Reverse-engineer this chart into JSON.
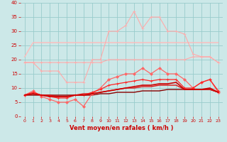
{
  "xlabel": "Vent moyen/en rafales ( km/h )",
  "xlim": [
    -0.5,
    23.5
  ],
  "ylim": [
    0,
    40
  ],
  "yticks": [
    0,
    5,
    10,
    15,
    20,
    25,
    30,
    35,
    40
  ],
  "xticks": [
    0,
    1,
    2,
    3,
    4,
    5,
    6,
    7,
    8,
    9,
    10,
    11,
    12,
    13,
    14,
    15,
    16,
    17,
    18,
    19,
    20,
    21,
    22,
    23
  ],
  "bg_color": "#cce8e8",
  "grid_color": "#99cccc",
  "xlabel_color": "#cc0000",
  "tick_color": "#cc0000",
  "series": [
    {
      "y": [
        21,
        26,
        26,
        26,
        26,
        26,
        26,
        26,
        26,
        26,
        26,
        26,
        26,
        26,
        26,
        26,
        26,
        26,
        26,
        26,
        26,
        26,
        26,
        26
      ],
      "color": "#ffbbbb",
      "marker": null,
      "lw": 1.0,
      "zorder": 2
    },
    {
      "y": [
        19,
        19,
        19,
        19,
        19,
        19,
        19,
        19,
        19,
        19,
        20,
        20,
        20,
        20,
        20,
        20,
        20,
        20,
        20,
        20,
        21,
        21,
        21,
        19
      ],
      "color": "#ffaaaa",
      "marker": "+",
      "ms": 3,
      "lw": 0.8,
      "zorder": 3
    },
    {
      "y": [
        19,
        19,
        16,
        16,
        16,
        12,
        12,
        12,
        20,
        20,
        30,
        30,
        32,
        37,
        31,
        35,
        35,
        30,
        30,
        29,
        22,
        21,
        21,
        19
      ],
      "color": "#ffaaaa",
      "marker": "+",
      "ms": 3,
      "lw": 0.8,
      "zorder": 3
    },
    {
      "y": [
        7.5,
        9,
        7,
        6,
        5,
        5,
        6,
        3.5,
        8,
        10,
        13,
        14,
        15,
        15,
        17,
        15,
        17,
        15,
        15,
        13,
        10,
        12,
        13,
        8.5
      ],
      "color": "#ff6666",
      "marker": "D",
      "ms": 2.0,
      "lw": 0.9,
      "zorder": 4
    },
    {
      "y": [
        7.5,
        8.5,
        7.5,
        7,
        6.5,
        6.5,
        7.5,
        7.5,
        8.5,
        9.5,
        11,
        11.5,
        12,
        12.5,
        13,
        12.5,
        13,
        13,
        13,
        10,
        10,
        12,
        13,
        9
      ],
      "color": "#ff2222",
      "marker": "+",
      "ms": 3,
      "lw": 0.9,
      "zorder": 5
    },
    {
      "y": [
        7.5,
        8,
        7.5,
        7,
        7,
        7,
        7.5,
        7.5,
        8,
        8.5,
        9,
        9.5,
        10,
        10.5,
        11,
        11,
        11.5,
        11.5,
        12,
        9.5,
        9.5,
        9.5,
        10,
        8.5
      ],
      "color": "#cc0000",
      "marker": null,
      "lw": 1.2,
      "zorder": 5
    },
    {
      "y": [
        7.5,
        8,
        7.5,
        7.5,
        7,
        7,
        7.5,
        8,
        8,
        8.5,
        9,
        9.5,
        10,
        10,
        10.5,
        10.5,
        11,
        11,
        11,
        9.5,
        9.5,
        9.5,
        9.5,
        8.5
      ],
      "color": "#dd1111",
      "marker": null,
      "lw": 1.0,
      "zorder": 4
    },
    {
      "y": [
        7.5,
        7.5,
        7.5,
        7.5,
        7.5,
        7.5,
        7.5,
        7.5,
        7.5,
        8,
        8,
        8.5,
        8.5,
        8.5,
        9,
        9,
        9,
        9.5,
        9.5,
        9.5,
        9.5,
        9.5,
        9.5,
        8.5
      ],
      "color": "#880000",
      "marker": null,
      "lw": 1.0,
      "zorder": 3
    }
  ]
}
